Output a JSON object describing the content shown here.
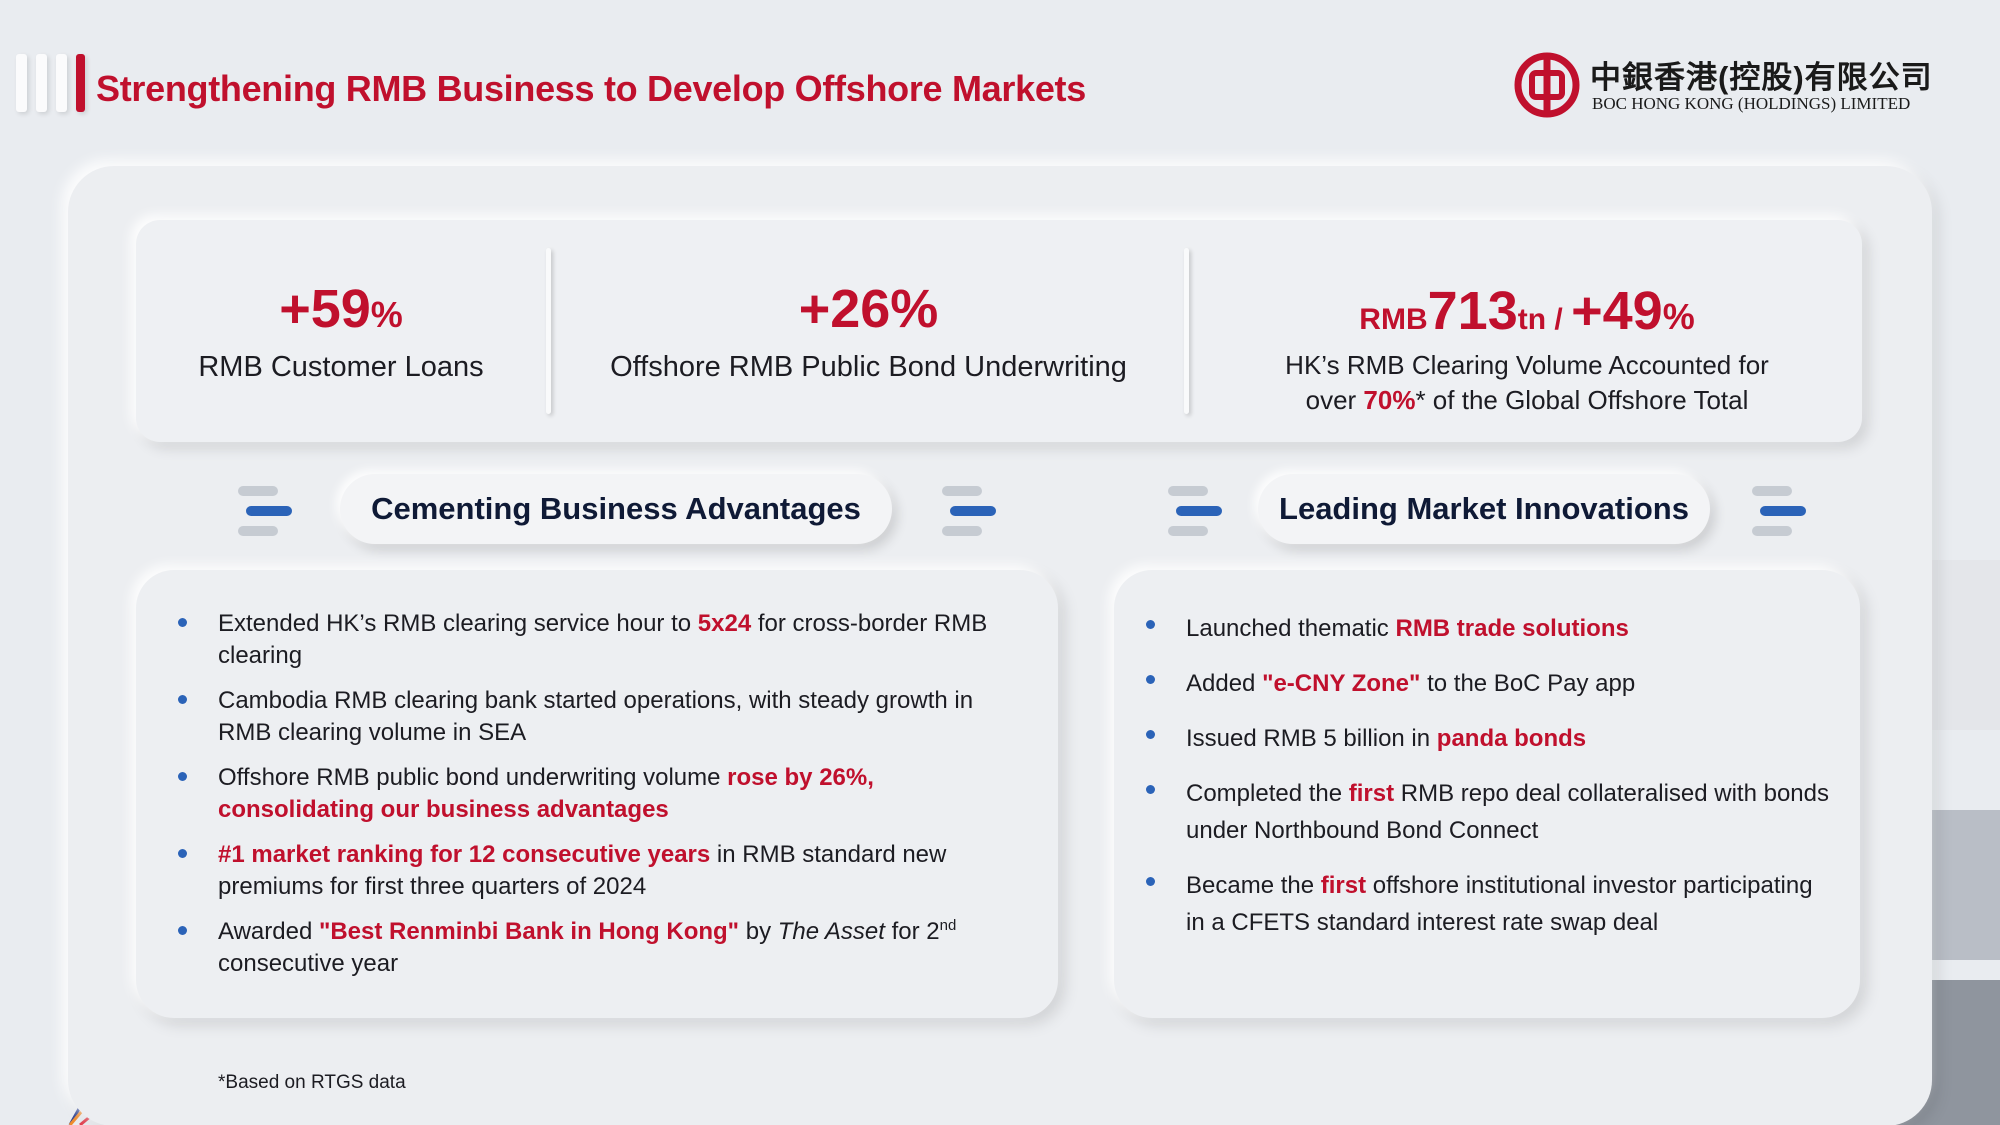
{
  "header": {
    "title": "Strengthening RMB Business to Develop Offshore Markets",
    "logo_cn": "中銀香港(控股)有限公司",
    "logo_en": "BOC HONG KONG (HOLDINGS) LIMITED"
  },
  "stats": [
    {
      "value": "+59",
      "unit": "%",
      "label": "RMB Customer Loans"
    },
    {
      "value": "+26%",
      "label": "Offshore RMB Public Bond Underwriting"
    },
    {
      "prefix": "RMB",
      "value": "713",
      "suffix": "tn",
      "sep": " / ",
      "value2": "+49",
      "unit2": "%",
      "label_line1": "HK’s RMB Clearing Volume Accounted for",
      "label_line2_pre": "over ",
      "label_line2_hl": "70%",
      "label_line2_post": "* of the Global Offshore Total"
    }
  ],
  "sections": {
    "left_title": "Cementing Business Advantages",
    "right_title": "Leading Market Innovations"
  },
  "left_items": [
    {
      "pre": "Extended HK’s RMB clearing service hour to ",
      "hl": "5x24",
      "post": " for cross-border RMB clearing"
    },
    {
      "text": "Cambodia RMB clearing bank started operations, with steady growth in RMB clearing volume in SEA"
    },
    {
      "pre": "Offshore RMB public bond underwriting volume ",
      "hl": "rose by 26%, consolidating our business advantages"
    },
    {
      "hl": "#1 market ranking for 12 consecutive years",
      "post": " in RMB standard new premiums for first three quarters of 2024"
    },
    {
      "pre": "Awarded ",
      "hl": "\"Best Renminbi Bank in Hong Kong\"",
      "mid": " by ",
      "italic": "The Asset",
      "mid2": " for 2",
      "sup": "nd",
      "post": " consecutive year"
    }
  ],
  "right_items": [
    {
      "pre": "Launched thematic ",
      "hl": "RMB trade solutions"
    },
    {
      "pre": "Added ",
      "hl": "\"e-CNY Zone\"",
      "post": " to the BoC Pay app"
    },
    {
      "pre": "Issued RMB 5 billion in ",
      "hl": "panda bonds"
    },
    {
      "pre": "Completed the ",
      "hl": "first",
      "post": " RMB repo deal collateralised with bonds under Northbound Bond Connect"
    },
    {
      "pre": "Became the ",
      "hl": "first",
      "post": " offshore institutional investor participating in a CFETS standard interest rate swap deal"
    }
  ],
  "footnote": "*Based on RTGS data",
  "colors": {
    "accent": "#c0102d",
    "bullet": "#2b63b8",
    "heading": "#0f1a36"
  },
  "icons": [
    "boc-logo-icon",
    "yuan-magnifier-icon"
  ]
}
